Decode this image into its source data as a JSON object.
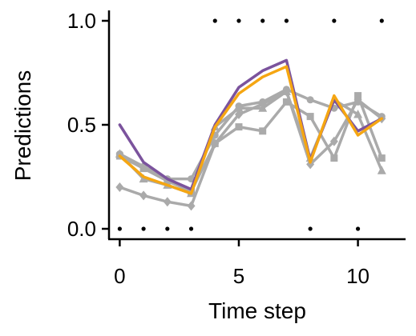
{
  "chart_data": {
    "type": "line",
    "xlabel": "Time step",
    "ylabel": "Predictions",
    "xlim": [
      -0.45,
      12.0
    ],
    "ylim": [
      -0.05,
      1.05
    ],
    "x_ticks": [
      0,
      5,
      10
    ],
    "x_tick_labels": [
      "0",
      "5",
      "10"
    ],
    "y_ticks": [
      0.0,
      0.5,
      1.0
    ],
    "y_tick_labels": [
      "0.0",
      "0.5",
      "1.0"
    ],
    "grid": false,
    "x": [
      0,
      1,
      2,
      3,
      4,
      5,
      6,
      7,
      8,
      9,
      10,
      11
    ],
    "targets": {
      "color": "#000000",
      "values": [
        0,
        0,
        0,
        0,
        1,
        1,
        1,
        1,
        0,
        1,
        0,
        1
      ]
    },
    "series": [
      {
        "color": "#aaaaaa",
        "marker": "square",
        "values": [
          0.35,
          0.29,
          0.23,
          0.18,
          0.41,
          0.49,
          0.47,
          0.61,
          0.54,
          0.34,
          0.64,
          0.34
        ]
      },
      {
        "color": "#aaaaaa",
        "marker": "triangle",
        "values": [
          0.36,
          0.24,
          0.21,
          0.17,
          0.49,
          0.58,
          0.58,
          0.66,
          0.34,
          0.62,
          0.55,
          0.28
        ]
      },
      {
        "color": "#aaaaaa",
        "marker": "circle",
        "values": [
          0.36,
          0.3,
          0.24,
          0.24,
          0.45,
          0.59,
          0.61,
          0.67,
          0.62,
          0.58,
          0.61,
          0.54
        ]
      },
      {
        "color": "#aaaaaa",
        "marker": "diamond",
        "values": [
          0.2,
          0.16,
          0.13,
          0.11,
          0.41,
          0.55,
          0.6,
          0.66,
          0.31,
          0.42,
          0.62,
          0.53
        ]
      },
      {
        "color": "#7b539d",
        "marker": "none",
        "values": [
          0.5,
          0.32,
          0.24,
          0.19,
          0.5,
          0.68,
          0.76,
          0.81,
          0.33,
          0.62,
          0.47,
          0.53
        ]
      },
      {
        "color": "#f5a612",
        "marker": "none",
        "values": [
          0.35,
          0.25,
          0.21,
          0.17,
          0.49,
          0.65,
          0.73,
          0.78,
          0.32,
          0.64,
          0.45,
          0.53
        ]
      }
    ]
  }
}
